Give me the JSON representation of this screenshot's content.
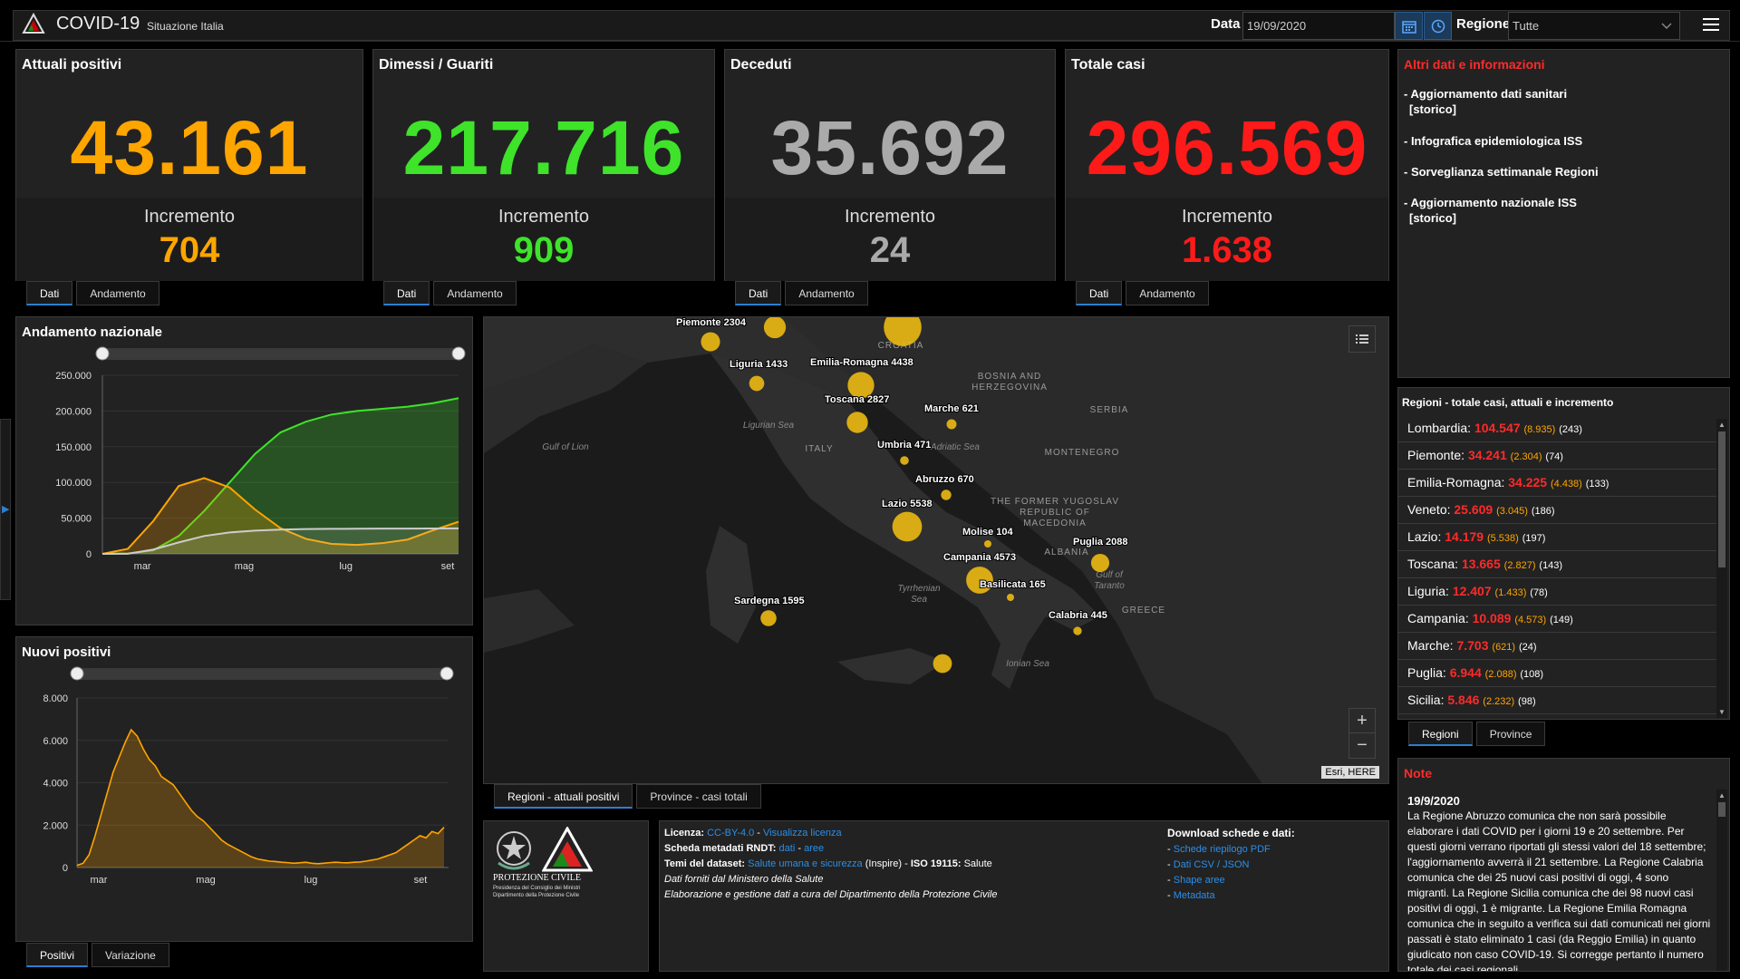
{
  "header": {
    "title": "COVID-19",
    "subtitle": "Situazione Italia",
    "data_label": "Data",
    "date_value": "19/09/2020",
    "regione_label": "Regione",
    "regione_value": "Tutte"
  },
  "cards": [
    {
      "title": "Attuali positivi",
      "value": "43.161",
      "inc_label": "Incremento",
      "inc": "704",
      "color": "#ffa500",
      "tab1": "Dati",
      "tab2": "Andamento"
    },
    {
      "title": "Dimessi / Guariti",
      "value": "217.716",
      "inc_label": "Incremento",
      "inc": "909",
      "color": "#3ee32a",
      "tab1": "Dati",
      "tab2": "Andamento"
    },
    {
      "title": "Deceduti",
      "value": "35.692",
      "inc_label": "Incremento",
      "inc": "24",
      "color": "#aaaaaa",
      "tab1": "Dati",
      "tab2": "Andamento"
    },
    {
      "title": "Totale casi",
      "value": "296.569",
      "inc_label": "Incremento",
      "inc": "1.638",
      "color": "#ff1a1a",
      "tab1": "Dati",
      "tab2": "Andamento"
    }
  ],
  "info": {
    "title": "Altri dati e informazioni",
    "items": [
      {
        "line1": "- Aggiornamento dati sanitari",
        "line2": "[storico]"
      },
      {
        "line1": "- Infografica epidemiologica ISS",
        "line2": ""
      },
      {
        "line1": "- Sorveglianza settimanale Regioni",
        "line2": ""
      },
      {
        "line1": "- Aggiornamento nazionale ISS",
        "line2": "[storico]"
      }
    ]
  },
  "regions_panel": {
    "title": "Regioni - totale casi, attuali e incremento",
    "rows": [
      {
        "name": "Lombardia:",
        "total": "104.547",
        "act": "(8.935)",
        "inc": "(243)"
      },
      {
        "name": "Piemonte:",
        "total": "34.241",
        "act": "(2.304)",
        "inc": "(74)"
      },
      {
        "name": "Emilia-Romagna:",
        "total": "34.225",
        "act": "(4.438)",
        "inc": "(133)"
      },
      {
        "name": "Veneto:",
        "total": "25.609",
        "act": "(3.045)",
        "inc": "(186)"
      },
      {
        "name": "Lazio:",
        "total": "14.179",
        "act": "(5.538)",
        "inc": "(197)"
      },
      {
        "name": "Toscana:",
        "total": "13.665",
        "act": "(2.827)",
        "inc": "(143)"
      },
      {
        "name": "Liguria:",
        "total": "12.407",
        "act": "(1.433)",
        "inc": "(78)"
      },
      {
        "name": "Campania:",
        "total": "10.089",
        "act": "(4.573)",
        "inc": "(149)"
      },
      {
        "name": "Marche:",
        "total": "7.703",
        "act": "(621)",
        "inc": "(24)"
      },
      {
        "name": "Puglia:",
        "total": "6.944",
        "act": "(2.088)",
        "inc": "(108)"
      },
      {
        "name": "Sicilia:",
        "total": "5.846",
        "act": "(2.232)",
        "inc": "(98)"
      }
    ],
    "tab1": "Regioni",
    "tab2": "Province"
  },
  "notes": {
    "title": "Note",
    "date": "19/9/2020",
    "text": "La Regione Abruzzo comunica che non sarà possibile elaborare i dati COVID per i giorni 19 e 20 settembre. Per questi giorni verrano riportati gli stessi valori del 18 settembre; l'aggiornamento avverrà il 21 settembre. La Regione Calabria comunica che dei 25 nuovi casi positivi di oggi, 4 sono migranti. La Regione Sicilia comunica che dei 98 nuovi casi positivi di oggi, 1 è migrante. La Regione Emilia Romagna comunica che in seguito a verifica sui dati comunicati nei giorni passati è stato eliminato 1 casi (da Reggio Emilia) in quanto giudicato non caso COVID-19. Si corregge pertanto il numero totale dei casi regionali"
  },
  "chart1": {
    "title": "Andamento nazionale",
    "yticks": [
      "250.000",
      "200.000",
      "150.000",
      "100.000",
      "50.000",
      "0"
    ],
    "xticks": [
      "mar",
      "mag",
      "lug",
      "set"
    ]
  },
  "chart2": {
    "title": "Nuovi positivi",
    "yticks": [
      "8.000",
      "6.000",
      "4.000",
      "2.000",
      "0"
    ],
    "xticks": [
      "mar",
      "mag",
      "lug",
      "set"
    ],
    "tab1": "Positivi",
    "tab2": "Variazione"
  },
  "chart_data": [
    {
      "type": "area",
      "title": "Andamento nazionale",
      "ylim": [
        0,
        250000
      ],
      "xticks": [
        "mar",
        "mag",
        "lug",
        "set"
      ],
      "x_months": [
        0,
        0.5,
        1,
        1.5,
        2,
        2.5,
        3,
        3.5,
        4,
        4.5,
        5,
        5.5,
        6,
        6.5,
        7
      ],
      "series": [
        {
          "values": [
            0,
            7000,
            46000,
            95000,
            106000,
            93000,
            62000,
            36000,
            21000,
            14000,
            12500,
            15000,
            20000,
            33000,
            45000
          ],
          "color": "#ffa500"
        },
        {
          "values": [
            0,
            500,
            5000,
            25000,
            60000,
            100000,
            140000,
            170000,
            185000,
            195000,
            200000,
            203000,
            206000,
            211000,
            218000
          ],
          "color": "#3ee32a"
        },
        {
          "values": [
            0,
            200,
            6000,
            16000,
            25000,
            30000,
            32500,
            34000,
            34700,
            35000,
            35200,
            35300,
            35400,
            35500,
            35700
          ],
          "color": "#cccccc"
        }
      ]
    },
    {
      "type": "area",
      "title": "Nuovi positivi",
      "ylim": [
        0,
        8000
      ],
      "xticks": [
        "mar",
        "mag",
        "lug",
        "set"
      ],
      "values": [
        100,
        200,
        600,
        1500,
        2500,
        3500,
        4500,
        5200,
        5900,
        6500,
        6200,
        5600,
        5100,
        4800,
        4300,
        4100,
        3900,
        3500,
        3100,
        2700,
        2400,
        2200,
        1900,
        1600,
        1300,
        1100,
        950,
        800,
        650,
        500,
        400,
        350,
        300,
        280,
        250,
        230,
        200,
        220,
        250,
        200,
        180,
        200,
        230,
        250,
        230,
        220,
        250,
        260,
        300,
        350,
        400,
        500,
        600,
        700,
        900,
        1100,
        1300,
        1500,
        1400,
        1700,
        1600,
        1900
      ]
    }
  ],
  "map": {
    "regions": [
      {
        "label": "Piemonte 2304",
        "v": 2304
      },
      {
        "label": "",
        "v": 3045
      },
      {
        "label": "",
        "v": 8935
      },
      {
        "label": "Liguria 1433",
        "v": 1433
      },
      {
        "label": "Emilia-Romagna 4438",
        "v": 4438
      },
      {
        "label": "Toscana 2827",
        "v": 2827
      },
      {
        "label": "Marche 621",
        "v": 621
      },
      {
        "label": "Umbria 471",
        "v": 471
      },
      {
        "label": "Abruzzo 670",
        "v": 670
      },
      {
        "label": "Lazio 5538",
        "v": 5538
      },
      {
        "label": "Molise 104",
        "v": 104
      },
      {
        "label": "Campania 4573",
        "v": 4573
      },
      {
        "label": "Basilicata 165",
        "v": 165
      },
      {
        "label": "Puglia 2088",
        "v": 2088
      },
      {
        "label": "Calabria 445",
        "v": 445
      },
      {
        "label": "Sardegna 1595",
        "v": 1595
      },
      {
        "label": "",
        "v": 2232
      }
    ],
    "geo": [
      "CROATIA",
      "BOSNIA AND",
      "HERZEGOVINA",
      "SERBIA",
      "MONTENEGRO",
      "ITALY",
      "THE FORMER YUGOSLAV",
      "REPUBLIC OF",
      "MACEDONIA",
      "ALBANIA",
      "GREECE"
    ],
    "seas": [
      "Gulf of Lion",
      "Ligurian Sea",
      "Adriatic Sea",
      "Tyrrhenian",
      "Sea",
      "Gulf of",
      "Taranto",
      "Ionian Sea"
    ],
    "attribution": "Esri, HERE",
    "tab1": "Regioni - attuali positivi",
    "tab2": "Province - casi totali"
  },
  "footer": {
    "logo_line1": "PROTEZIONE CIVILE",
    "logo_line2": "Presidenza del Consiglio dei Ministri",
    "logo_line3": "Dipartimento della Protezione Civile",
    "lic_label": "Licenza:",
    "lic_link1": "CC-BY-4.0",
    "lic_sep": " - ",
    "lic_link2": "Visualizza licenza",
    "meta_label": "Scheda metadati RNDT:",
    "meta_link1": "dati",
    "meta_link2": "aree",
    "temi_label": "Temi del dataset:",
    "temi_link": "Salute umana e sicurezza",
    "temi_rest": " (Inspire) - ",
    "iso_label": "ISO 19115:",
    "iso_value": " Salute",
    "dati_line": "Dati forniti dal Ministero della Salute",
    "elab_line": "Elaborazione e gestione dati a cura del Dipartimento della Protezione Civile",
    "download_title": "Download schede e dati:",
    "downloads": [
      "Schede riepilogo PDF",
      "Dati CSV / JSON",
      "Shape aree",
      "Metadata"
    ]
  }
}
